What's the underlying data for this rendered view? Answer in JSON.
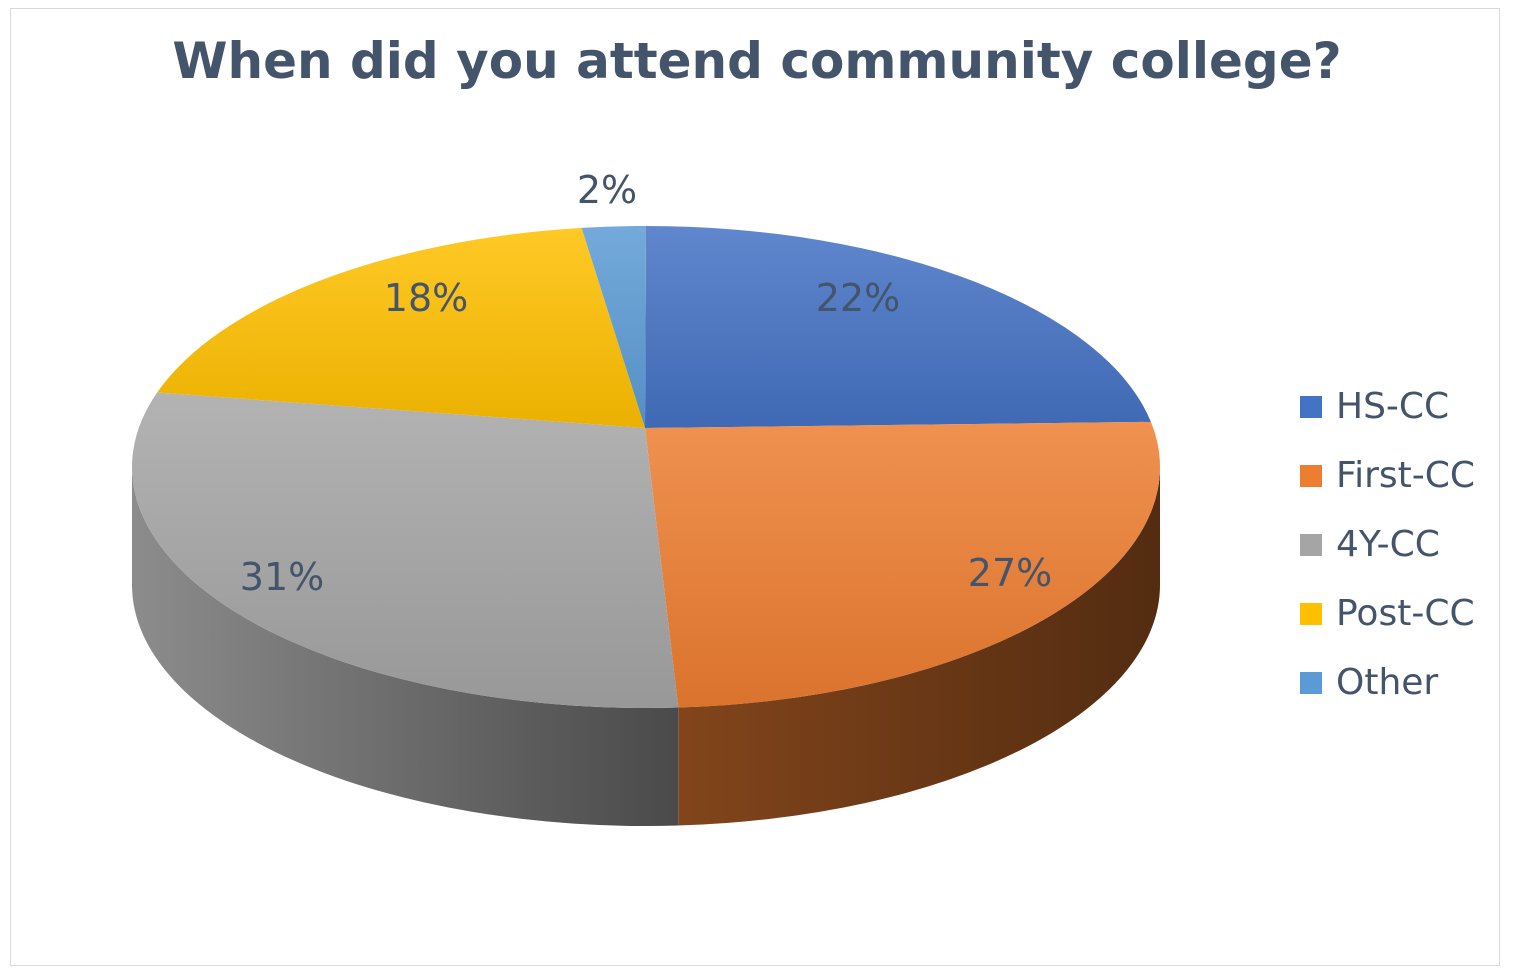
{
  "chart_data": {
    "type": "pie",
    "style": "3d",
    "title": "When did you attend community college?",
    "categories": [
      "HS-CC",
      "First-CC",
      "4Y-CC",
      "Post-CC",
      "Other"
    ],
    "values": [
      22,
      27,
      31,
      18,
      2
    ],
    "data_labels": [
      "22%",
      "27%",
      "31%",
      "18%",
      "2%"
    ],
    "colors": [
      "#4472c4",
      "#ed7d31",
      "#a5a5a5",
      "#ffc000",
      "#5b9bd5"
    ],
    "legend_position": "right"
  }
}
